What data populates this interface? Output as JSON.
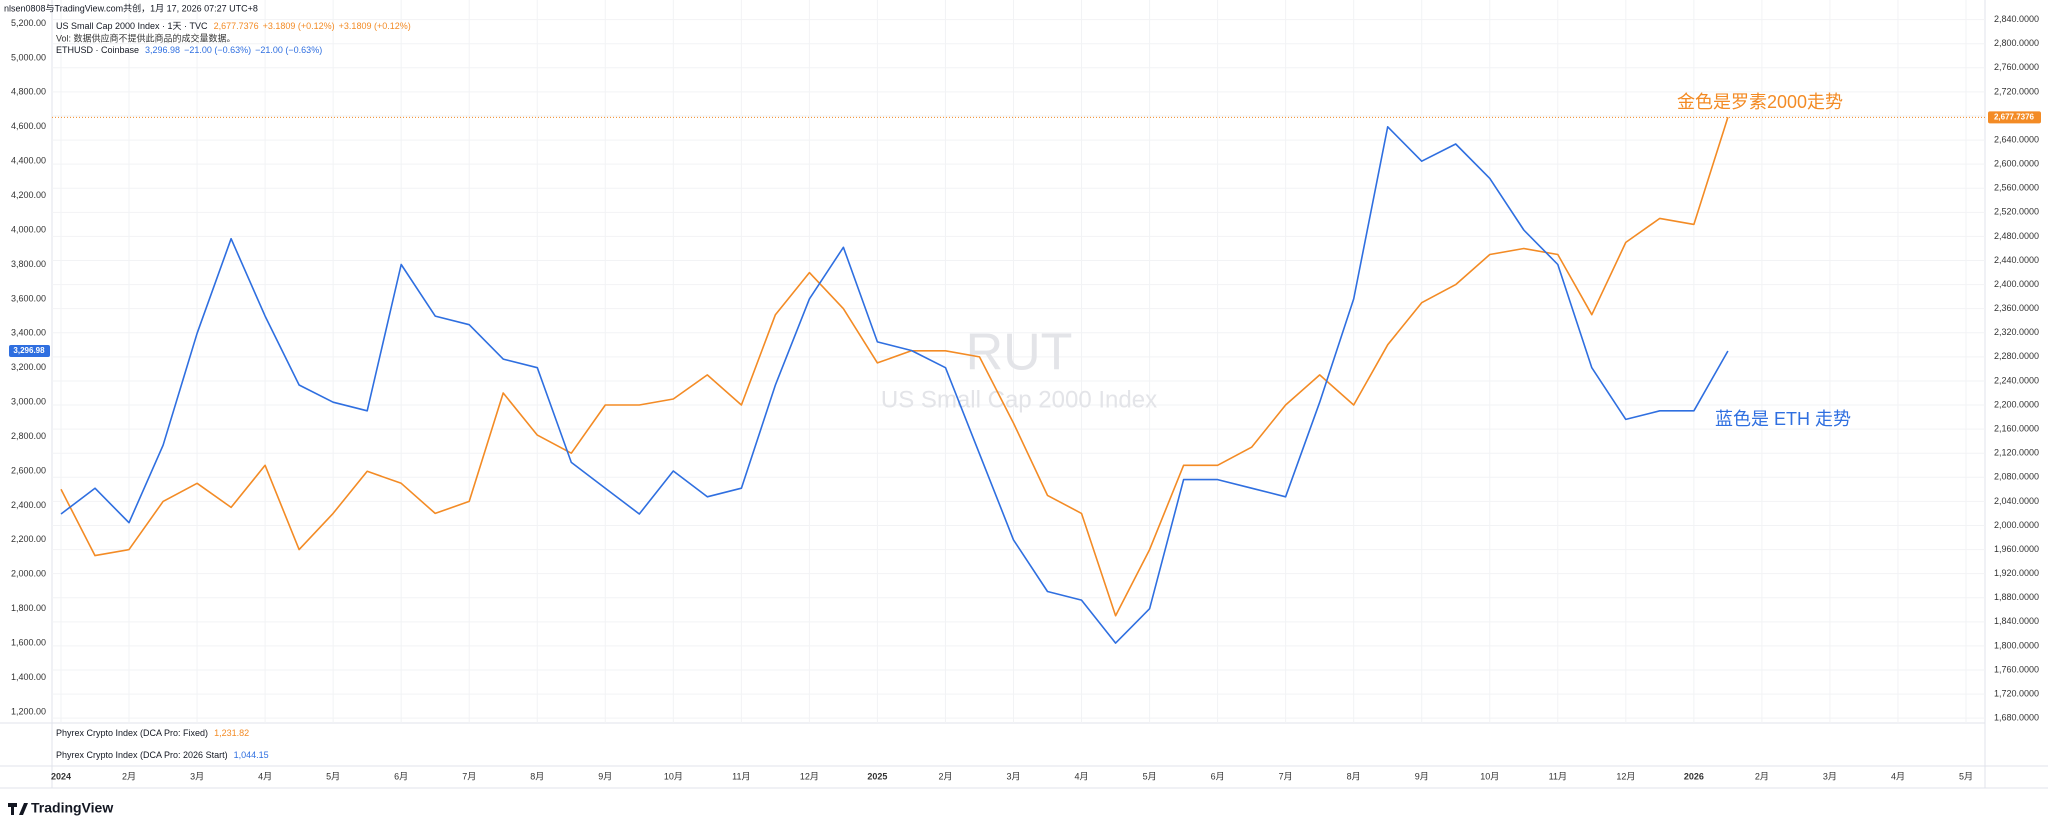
{
  "header": {
    "credit": "nlsen0808与TradingView.com共创，1月 17, 2026 07:27 UTC+8",
    "logo": "TradingView"
  },
  "chart_data": {
    "type": "line",
    "watermark": {
      "symbol": "RUT",
      "name": "US Small Cap 2000 Index"
    },
    "annotations": [
      {
        "text": "金色是罗素2000走势",
        "color": "#f38b25"
      },
      {
        "text": "蓝色是 ETH 走势",
        "color": "#2f6fe0"
      }
    ],
    "volume_note": "Vol: 数据供应商不提供此商品的成交量数据。",
    "categories": [
      "2024",
      null,
      "2月",
      null,
      "3月",
      null,
      "4月",
      null,
      "5月",
      null,
      "6月",
      null,
      "7月",
      null,
      "8月",
      null,
      "9月",
      null,
      "10月",
      null,
      "11月",
      null,
      "12月",
      null,
      "2025",
      null,
      "2月",
      null,
      "3月",
      null,
      "4月",
      null,
      "5月",
      null,
      "6月",
      null,
      "7月",
      null,
      "8月",
      null,
      "9月",
      null,
      "10月",
      null,
      "11月",
      null,
      "12月",
      null,
      "2026",
      null,
      "2月",
      null,
      "3月",
      null,
      "4月",
      null,
      "5月"
    ],
    "series": [
      {
        "name": "US Small Cap 2000 Index · 1天 · TVC",
        "color": "#f38b25",
        "axis": "y2",
        "last_label": "2,677.7376",
        "change_label": "+3.1809 (+0.12%)",
        "change_label_2": "+3.1809 (+0.12%)",
        "values": [
          2060,
          1950,
          1960,
          2040,
          2070,
          2030,
          2100,
          1960,
          2020,
          2090,
          2070,
          2020,
          2040,
          2220,
          2150,
          2120,
          2200,
          2200,
          2210,
          2250,
          2200,
          2350,
          2420,
          2360,
          2270,
          2290,
          2290,
          2280,
          2170,
          2050,
          2020,
          1850,
          1960,
          2100,
          2100,
          2130,
          2200,
          2250,
          2200,
          2300,
          2370,
          2400,
          2450,
          2460,
          2450,
          2350,
          2470,
          2510,
          2500,
          2677.7376,
          null,
          null,
          null,
          null,
          null,
          null,
          null
        ]
      },
      {
        "name": "ETHUSD · Coinbase",
        "color": "#2f6fe0",
        "last_label": "3,296.98",
        "change_label": "−21.00 (−0.63%)",
        "change_label_2": "−21.00 (−0.63%)",
        "values": [
          2350,
          2500,
          2300,
          2750,
          3400,
          3950,
          3500,
          3100,
          3000,
          2950,
          3800,
          3500,
          3450,
          3250,
          3200,
          2650,
          2500,
          2350,
          2600,
          2450,
          2500,
          3100,
          3600,
          3900,
          3350,
          3300,
          3200,
          2700,
          2200,
          1900,
          1850,
          1600,
          1800,
          2550,
          2550,
          2500,
          2450,
          3000,
          3600,
          4600,
          4400,
          4500,
          4300,
          4000,
          3800,
          3200,
          2900,
          2950,
          2950,
          3296.98,
          null,
          null,
          null,
          null,
          null,
          null,
          null
        ]
      }
    ],
    "ylim": [
      1136,
      5261
    ],
    "yticks": [
      {
        "value": 1200,
        "label": "1,200.00"
      },
      {
        "value": 1400,
        "label": "1,400.00"
      },
      {
        "value": 1600,
        "label": "1,600.00"
      },
      {
        "value": 1800,
        "label": "1,800.00"
      },
      {
        "value": 2000,
        "label": "2,000.00"
      },
      {
        "value": 2200,
        "label": "2,200.00"
      },
      {
        "value": 2400,
        "label": "2,400.00"
      },
      {
        "value": 2600,
        "label": "2,600.00"
      },
      {
        "value": 2800,
        "label": "2,800.00"
      },
      {
        "value": 3000,
        "label": "3,000.00"
      },
      {
        "value": 3200,
        "label": "3,200.00"
      },
      {
        "value": 3400,
        "label": "3,400.00"
      },
      {
        "value": 3600,
        "label": "3,600.00"
      },
      {
        "value": 3800,
        "label": "3,800.00"
      },
      {
        "value": 4000,
        "label": "4,000.00"
      },
      {
        "value": 4200,
        "label": "4,200.00"
      },
      {
        "value": 4400,
        "label": "4,400.00"
      },
      {
        "value": 4600,
        "label": "4,600.00"
      },
      {
        "value": 4800,
        "label": "4,800.00"
      },
      {
        "value": 5000,
        "label": "5,000.00"
      },
      {
        "value": 5200,
        "label": "5,200.00"
      }
    ],
    "y2lim": [
      1672,
      2851
    ],
    "y2ticks": [
      {
        "value": 1680,
        "label": "1,680.0000"
      },
      {
        "value": 1720,
        "label": "1,720.0000"
      },
      {
        "value": 1760,
        "label": "1,760.0000"
      },
      {
        "value": 1800,
        "label": "1,800.0000"
      },
      {
        "value": 1840,
        "label": "1,840.0000"
      },
      {
        "value": 1880,
        "label": "1,880.0000"
      },
      {
        "value": 1920,
        "label": "1,920.0000"
      },
      {
        "value": 1960,
        "label": "1,960.0000"
      },
      {
        "value": 2000,
        "label": "2,000.0000"
      },
      {
        "value": 2040,
        "label": "2,040.0000"
      },
      {
        "value": 2080,
        "label": "2,080.0000"
      },
      {
        "value": 2120,
        "label": "2,120.0000"
      },
      {
        "value": 2160,
        "label": "2,160.0000"
      },
      {
        "value": 2200,
        "label": "2,200.0000"
      },
      {
        "value": 2240,
        "label": "2,240.0000"
      },
      {
        "value": 2280,
        "label": "2,280.0000"
      },
      {
        "value": 2320,
        "label": "2,320.0000"
      },
      {
        "value": 2360,
        "label": "2,360.0000"
      },
      {
        "value": 2400,
        "label": "2,400.0000"
      },
      {
        "value": 2440,
        "label": "2,440.0000"
      },
      {
        "value": 2480,
        "label": "2,480.0000"
      },
      {
        "value": 2520,
        "label": "2,520.0000"
      },
      {
        "value": 2560,
        "label": "2,560.0000"
      },
      {
        "value": 2600,
        "label": "2,600.0000"
      },
      {
        "value": 2640,
        "label": "2,640.0000"
      },
      {
        "value": 2680,
        "label": "2,680.0000"
      },
      {
        "value": 2720,
        "label": "2,720.0000"
      },
      {
        "value": 2760,
        "label": "2,760.0000"
      },
      {
        "value": 2800,
        "label": "2,800.0000"
      },
      {
        "value": 2840,
        "label": "2,840.0000"
      }
    ],
    "grid": true,
    "indicators": [
      {
        "name": "Phyrex Crypto Index (DCA Pro: Fixed)",
        "value_label": "1,231.82",
        "color": "#f38b25"
      },
      {
        "name": "Phyrex Crypto Index (DCA Pro: 2026 Start)",
        "value_label": "1,044.15",
        "color": "#2f6fe0"
      }
    ]
  }
}
